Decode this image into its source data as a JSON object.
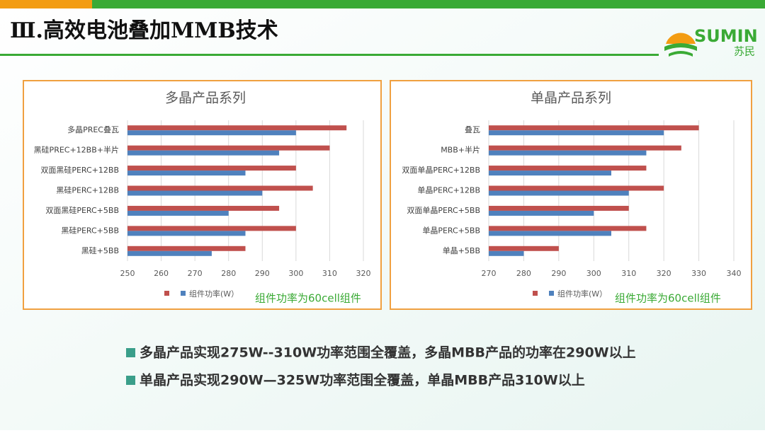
{
  "header": {
    "title": "Ⅲ.高效电池叠加MMB技术",
    "logo_text": "SUMIN",
    "logo_subtext": "苏民"
  },
  "chart_data": [
    {
      "type": "bar",
      "orientation": "horizontal",
      "title": "多晶产品系列",
      "categories": [
        "多晶PREC叠瓦",
        "黑硅PREC+12BB+半片",
        "双面黑硅PERC+12BB",
        "黑硅PERC+12BB",
        "双面黑硅PERC+5BB",
        "黑硅PERC+5BB",
        "黑硅+5BB"
      ],
      "series": [
        {
          "name": null,
          "color": "#c0504d",
          "values": [
            315,
            310,
            300,
            305,
            295,
            300,
            285
          ]
        },
        {
          "name": "组件功率(W）",
          "color": "#4f81bd",
          "values": [
            300,
            295,
            285,
            290,
            280,
            285,
            275
          ]
        }
      ],
      "xlim": [
        250,
        320
      ],
      "xticks": [
        250,
        260,
        270,
        280,
        290,
        300,
        310,
        320
      ],
      "grid": true,
      "annotation": "组件功率为60cell组件"
    },
    {
      "type": "bar",
      "orientation": "horizontal",
      "title": "单晶产品系列",
      "categories": [
        "叠瓦",
        "MBB+半片",
        "双面单晶PERC+12BB",
        "单晶PERC+12BB",
        "双面单晶PERC+5BB",
        "单晶PERC+5BB",
        "单晶+5BB"
      ],
      "series": [
        {
          "name": null,
          "color": "#c0504d",
          "values": [
            330,
            325,
            315,
            320,
            310,
            315,
            290
          ]
        },
        {
          "name": "组件功率(W）",
          "color": "#4f81bd",
          "values": [
            320,
            315,
            305,
            310,
            300,
            305,
            280
          ]
        }
      ],
      "xlim": [
        270,
        340
      ],
      "xticks": [
        270,
        280,
        290,
        300,
        310,
        320,
        330,
        340
      ],
      "grid": true,
      "annotation": "组件功率为60cell组件"
    }
  ],
  "bullets": [
    "多晶产品实现275W--310W功率范围全覆盖，多晶MBB产品的功率在290W以上",
    "单晶产品实现290W—325W功率范围全覆盖，单晶MBB产品310W以上"
  ]
}
